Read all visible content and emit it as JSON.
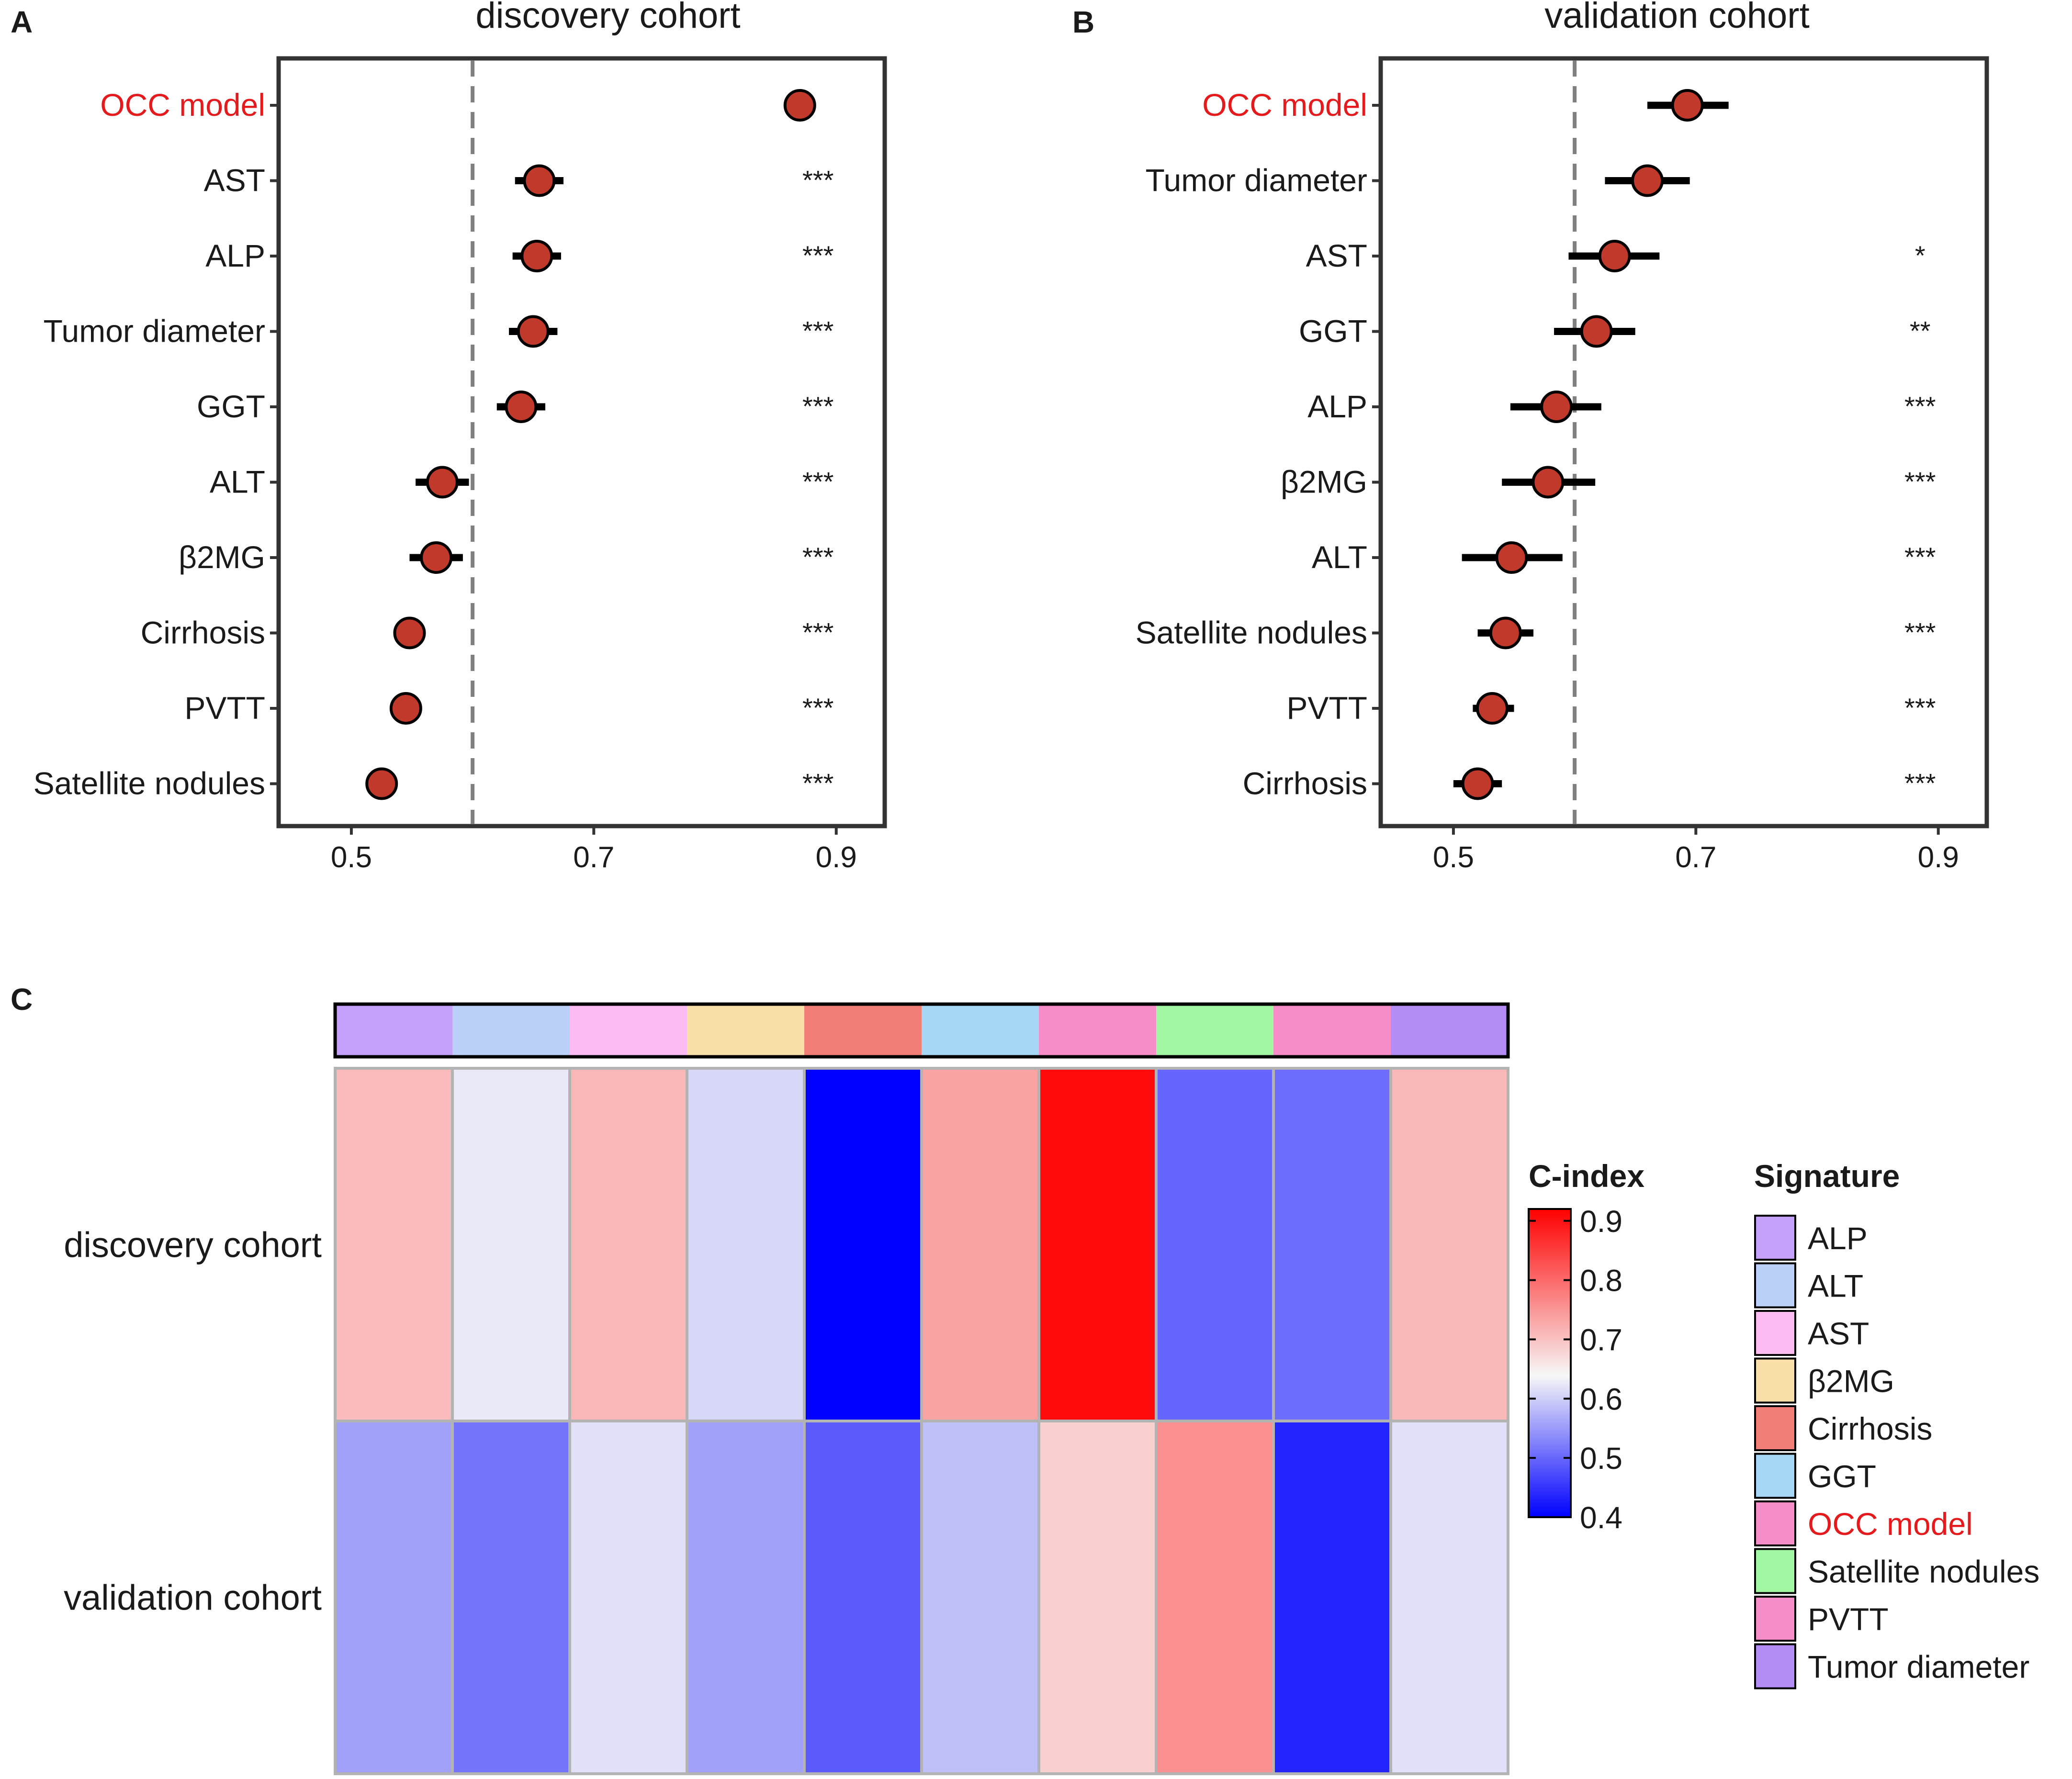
{
  "panel_labels": {
    "a": "A",
    "b": "B",
    "c": "C"
  },
  "colors": {
    "point_fill": "#c0392b",
    "highlight_text": "#e41a1c",
    "reference_line": "#808080",
    "panel_border": "#333333"
  },
  "chart_data": [
    {
      "type": "scatter",
      "subtype": "forest",
      "title": "discovery cohort",
      "xlabel": "",
      "ylabel": "",
      "xlim": [
        0.44,
        0.94
      ],
      "xticks": [
        0.5,
        0.7,
        0.9
      ],
      "tick_labels": [
        "0.5",
        "0.7",
        "0.9"
      ],
      "reference_line": 0.6,
      "highlight": "OCC model",
      "rows": [
        {
          "label": "OCC model",
          "value": 0.87,
          "lo": 0.87,
          "hi": 0.87,
          "sig": ""
        },
        {
          "label": "AST",
          "value": 0.655,
          "lo": 0.635,
          "hi": 0.675,
          "sig": "***"
        },
        {
          "label": "ALP",
          "value": 0.653,
          "lo": 0.633,
          "hi": 0.673,
          "sig": "***"
        },
        {
          "label": "Tumor diameter",
          "value": 0.65,
          "lo": 0.63,
          "hi": 0.67,
          "sig": "***"
        },
        {
          "label": "GGT",
          "value": 0.64,
          "lo": 0.62,
          "hi": 0.66,
          "sig": "***"
        },
        {
          "label": "ALT",
          "value": 0.575,
          "lo": 0.553,
          "hi": 0.597,
          "sig": "***"
        },
        {
          "label": "β2MG",
          "value": 0.57,
          "lo": 0.548,
          "hi": 0.592,
          "sig": "***"
        },
        {
          "label": "Cirrhosis",
          "value": 0.548,
          "lo": 0.54,
          "hi": 0.556,
          "sig": "***"
        },
        {
          "label": "PVTT",
          "value": 0.545,
          "lo": 0.537,
          "hi": 0.553,
          "sig": "***"
        },
        {
          "label": "Satellite nodules",
          "value": 0.525,
          "lo": 0.518,
          "hi": 0.532,
          "sig": "***"
        }
      ]
    },
    {
      "type": "scatter",
      "subtype": "forest",
      "title": "validation cohort",
      "xlabel": "",
      "ylabel": "",
      "xlim": [
        0.44,
        0.94
      ],
      "xticks": [
        0.5,
        0.7,
        0.9
      ],
      "tick_labels": [
        "0.5",
        "0.7",
        "0.9"
      ],
      "reference_line": 0.6,
      "highlight": "OCC model",
      "rows": [
        {
          "label": "OCC model",
          "value": 0.693,
          "lo": 0.66,
          "hi": 0.727,
          "sig": ""
        },
        {
          "label": "Tumor diameter",
          "value": 0.66,
          "lo": 0.625,
          "hi": 0.695,
          "sig": ""
        },
        {
          "label": "AST",
          "value": 0.633,
          "lo": 0.595,
          "hi": 0.67,
          "sig": "*"
        },
        {
          "label": "GGT",
          "value": 0.618,
          "lo": 0.583,
          "hi": 0.65,
          "sig": "**"
        },
        {
          "label": "ALP",
          "value": 0.585,
          "lo": 0.547,
          "hi": 0.622,
          "sig": "***"
        },
        {
          "label": "β2MG",
          "value": 0.578,
          "lo": 0.54,
          "hi": 0.617,
          "sig": "***"
        },
        {
          "label": "ALT",
          "value": 0.548,
          "lo": 0.507,
          "hi": 0.59,
          "sig": "***"
        },
        {
          "label": "Satellite nodules",
          "value": 0.543,
          "lo": 0.52,
          "hi": 0.566,
          "sig": "***"
        },
        {
          "label": "PVTT",
          "value": 0.532,
          "lo": 0.516,
          "hi": 0.55,
          "sig": "***"
        },
        {
          "label": "Cirrhosis",
          "value": 0.52,
          "lo": 0.5,
          "hi": 0.54,
          "sig": "***"
        }
      ]
    },
    {
      "type": "heatmap",
      "title": "",
      "rows": [
        "discovery cohort",
        "validation cohort"
      ],
      "columns": [
        "ALP",
        "ALT",
        "AST",
        "β2MG",
        "Cirrhosis",
        "GGT",
        "OCC model",
        "Satellite nodules",
        "PVTT",
        "Tumor diameter"
      ],
      "column_annotation_colors": [
        "#c4a0fa",
        "#bcd1fa",
        "#fcbcf2",
        "#f8e0a8",
        "#f27e78",
        "#a6d8f6",
        "#f68cc8",
        "#a2f7a2",
        "#f68cc8",
        "#b48cf6"
      ],
      "values": [
        [
          0.716,
          0.636,
          0.72,
          0.618,
          0.401,
          0.742,
          0.908,
          0.503,
          0.51,
          0.718
        ],
        [
          0.563,
          0.516,
          0.627,
          0.563,
          0.492,
          0.594,
          0.693,
          0.763,
          0.436,
          0.627
        ]
      ],
      "color_scale": {
        "title": "C-index",
        "min": 0.4,
        "mid": 0.65,
        "max": 0.92,
        "low_color": "#0000ff",
        "mid_color": "#f7f7f7",
        "high_color": "#ff0000",
        "ticks": [
          0.9,
          0.8,
          0.7,
          0.6,
          0.5,
          0.4
        ],
        "tick_labels": [
          "0.9",
          "0.8",
          "0.7",
          "0.6",
          "0.5",
          "0.4"
        ]
      },
      "legend": {
        "title": "Signature",
        "entries": [
          "ALP",
          "ALT",
          "AST",
          "β2MG",
          "Cirrhosis",
          "GGT",
          "OCC model",
          "Satellite nodules",
          "PVTT",
          "Tumor diameter"
        ],
        "colors": [
          "#c4a0fa",
          "#bcd1fa",
          "#fcbcf2",
          "#f8e0a8",
          "#f27e78",
          "#a6d8f6",
          "#f68cc8",
          "#a2f7a2",
          "#f68cc8",
          "#b48cf6"
        ],
        "highlight": "OCC model"
      }
    }
  ]
}
